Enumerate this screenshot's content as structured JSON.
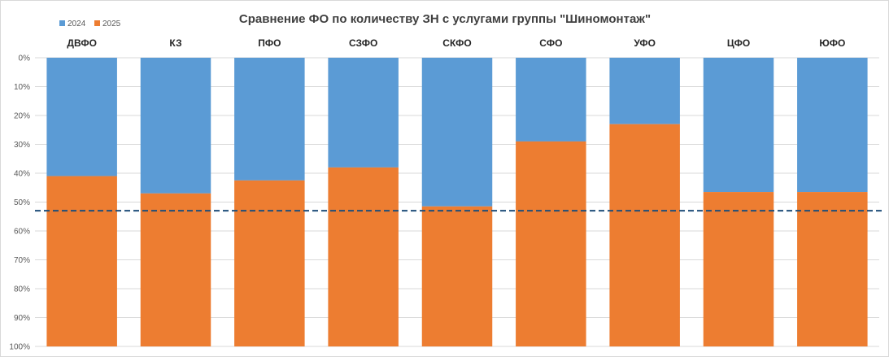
{
  "chart_data": {
    "type": "bar",
    "stacked": true,
    "percent_stacked": true,
    "title": "Сравнение ФО по количеству ЗН с услугами группы \"Шиномонтаж\"",
    "categories": [
      "ДВФО",
      "КЗ",
      "ПФО",
      "СЗФО",
      "СКФО",
      "СФО",
      "УФО",
      "ЦФО",
      "ЮФО"
    ],
    "series": [
      {
        "name": "2024",
        "color": "#5b9bd5",
        "values": [
          41,
          47,
          42.5,
          38,
          51.5,
          29,
          23,
          46.5,
          46.5
        ]
      },
      {
        "name": "2025",
        "color": "#ed7d31",
        "values": [
          59,
          53,
          57.5,
          62,
          48.5,
          71,
          77,
          53.5,
          53.5
        ]
      }
    ],
    "y_axis": {
      "reversed": true,
      "ylim": [
        0,
        100
      ],
      "ticks": [
        "0%",
        "10%",
        "20%",
        "30%",
        "40%",
        "50%",
        "60%",
        "70%",
        "80%",
        "90%",
        "100%"
      ]
    },
    "x_axis_position": "top",
    "reference_line": {
      "value": 53,
      "style": "dashed",
      "color": "#1f4e79"
    },
    "legend": {
      "position": "top-left"
    },
    "grid": true
  }
}
